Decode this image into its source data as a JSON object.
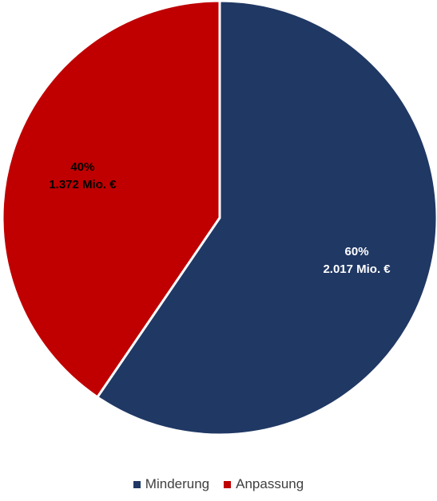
{
  "chart_data": {
    "type": "pie",
    "slices": [
      {
        "name": "Minderung",
        "percent_label": "60%",
        "value_label": "2.017 Mio. €",
        "value": 2017,
        "percent": 60,
        "color": "#203864",
        "label_color": "#ffffff"
      },
      {
        "name": "Anpassung",
        "percent_label": "40%",
        "value_label": "1.372 Mio. €",
        "value": 1372,
        "percent": 40,
        "color": "#c00000",
        "label_color": "#000000"
      }
    ],
    "start_angle_deg": 0,
    "direction": "clockwise",
    "legend_position": "bottom"
  }
}
